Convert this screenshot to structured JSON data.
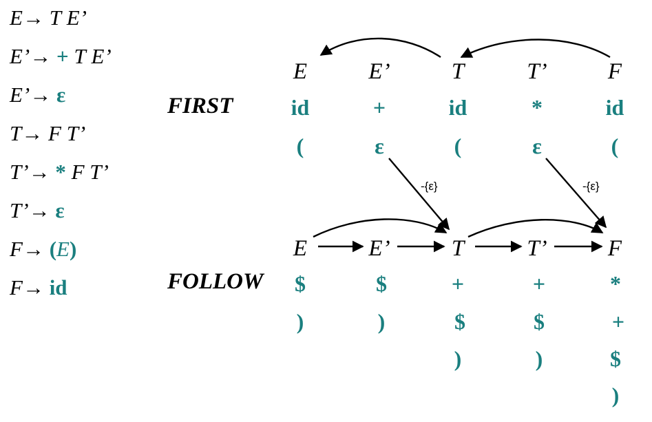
{
  "grammar": [
    {
      "lhs": "E",
      "arrow": "→",
      "rhs": [
        {
          "t": "nt",
          "v": "T"
        },
        {
          "t": "nt",
          "v": "E’"
        }
      ]
    },
    {
      "lhs": "E’",
      "arrow": "→",
      "rhs": [
        {
          "t": "term",
          "v": "+"
        },
        {
          "t": "nt",
          "v": "T"
        },
        {
          "t": "nt",
          "v": "E’"
        }
      ]
    },
    {
      "lhs": "E’",
      "arrow": "→",
      "rhs": [
        {
          "t": "term",
          "v": "ε"
        }
      ]
    },
    {
      "lhs": "T",
      "arrow": "→",
      "rhs": [
        {
          "t": "nt",
          "v": "F"
        },
        {
          "t": "nt",
          "v": "T’"
        }
      ]
    },
    {
      "lhs": "T’",
      "arrow": "→",
      "rhs": [
        {
          "t": "term",
          "v": "*"
        },
        {
          "t": "nt",
          "v": "F"
        },
        {
          "t": "nt",
          "v": "T’"
        }
      ]
    },
    {
      "lhs": "T’",
      "arrow": "→",
      "rhs": [
        {
          "t": "term",
          "v": "ε"
        }
      ]
    },
    {
      "lhs": "F",
      "arrow": "→",
      "rhs": [
        {
          "t": "term",
          "v": "("
        },
        {
          "t": "nt",
          "v": "E"
        },
        {
          "t": "term",
          "v": ")"
        }
      ]
    },
    {
      "lhs": "F",
      "arrow": "→",
      "rhs": [
        {
          "t": "term",
          "v": "id"
        }
      ]
    }
  ],
  "first": {
    "label": "FIRST",
    "columns": [
      {
        "symbol": "E",
        "set": [
          "id",
          "("
        ]
      },
      {
        "symbol": "E’",
        "set": [
          "+",
          "ε"
        ]
      },
      {
        "symbol": "T",
        "set": [
          "id",
          "("
        ]
      },
      {
        "symbol": "T’",
        "set": [
          "*",
          "ε"
        ]
      },
      {
        "symbol": "F",
        "set": [
          "id",
          "("
        ]
      }
    ]
  },
  "follow": {
    "label": "FOLLOW",
    "columns": [
      {
        "symbol": "E",
        "set": [
          "$",
          ")"
        ]
      },
      {
        "symbol": "E’",
        "set": [
          "$",
          ")"
        ]
      },
      {
        "symbol": "T",
        "set": [
          "+",
          "$",
          ")"
        ]
      },
      {
        "symbol": "T’",
        "set": [
          "+",
          "$",
          ")"
        ]
      },
      {
        "symbol": "F",
        "set": [
          "*",
          "+",
          "$",
          ")"
        ]
      }
    ]
  },
  "edge_label": "-{ε}"
}
